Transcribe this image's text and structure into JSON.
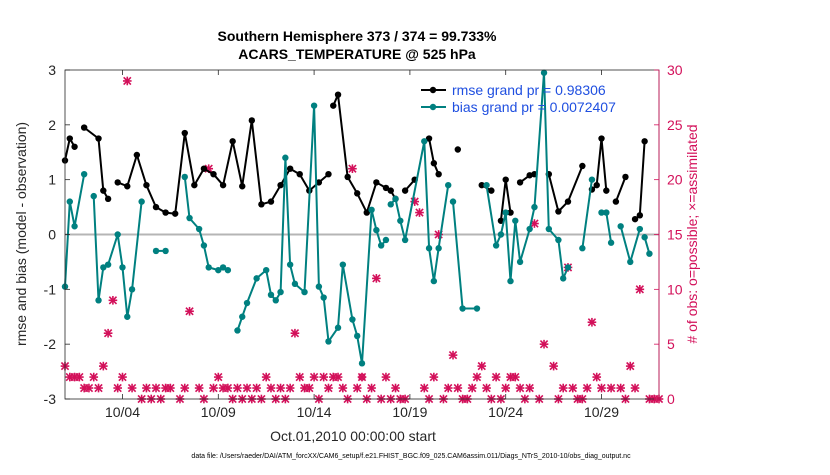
{
  "chart_data": {
    "type": "line",
    "title_line1": "Southern Hemisphere 373 / 374 = 99.733%",
    "title_line2": "ACARS_TEMPERATURE @ 525 hPa",
    "xlabel": "Oct.01,2010 00:00:00 start",
    "ylabel": "rmse and bias (model - observation)",
    "y2label": "# of obs: o=possible; ×=assimilated",
    "footer": "data file: /Users/raeder/DAI/ATM_forcXX/CAM6_setup/f.e21.FHIST_BGC.f09_025.CAM6assim.011/Diags_NTrS_2010-10/obs_diag_output.nc",
    "xlim": [
      1,
      32
    ],
    "ylim": [
      -3,
      3
    ],
    "y2lim": [
      0,
      30
    ],
    "x_ticks": [
      {
        "value": 4,
        "label": "10/04"
      },
      {
        "value": 9,
        "label": "10/09"
      },
      {
        "value": 14,
        "label": "10/14"
      },
      {
        "value": 19,
        "label": "10/19"
      },
      {
        "value": 24,
        "label": "10/24"
      },
      {
        "value": 29,
        "label": "10/29"
      }
    ],
    "y_ticks": [
      -3,
      -2,
      -1,
      0,
      1,
      2,
      3
    ],
    "y2_ticks": [
      0,
      5,
      10,
      15,
      20,
      25,
      30
    ],
    "zero_line": 0,
    "series": [
      {
        "name": "rmse",
        "legend": "rmse grand pr = 0.98306",
        "color": "#000000",
        "values": [
          [
            1.0,
            1.35
          ],
          [
            1.25,
            1.75
          ],
          [
            1.5,
            1.6
          ],
          [
            2.0,
            1.95
          ],
          [
            2.75,
            1.75
          ],
          [
            3.0,
            0.8
          ],
          [
            3.25,
            0.65
          ],
          [
            3.75,
            0.95
          ],
          [
            4.25,
            0.88
          ],
          [
            4.75,
            1.45
          ],
          [
            5.25,
            0.9
          ],
          [
            5.75,
            0.5
          ],
          [
            6.25,
            0.4
          ],
          [
            6.75,
            0.38
          ],
          [
            7.25,
            1.85
          ],
          [
            7.75,
            0.9
          ],
          [
            8.25,
            1.2
          ],
          [
            8.75,
            1.1
          ],
          [
            9.25,
            0.9
          ],
          [
            9.75,
            1.7
          ],
          [
            10.25,
            0.88
          ],
          [
            10.75,
            2.08
          ],
          [
            11.25,
            0.55
          ],
          [
            11.75,
            0.6
          ],
          [
            12.25,
            0.9
          ],
          [
            12.75,
            1.2
          ],
          [
            13.25,
            1.1
          ],
          [
            13.75,
            0.8
          ],
          [
            14.25,
            0.95
          ],
          [
            14.75,
            1.1
          ],
          [
            15.0,
            2.35
          ],
          [
            15.25,
            2.55
          ],
          [
            15.75,
            1.05
          ],
          [
            16.25,
            0.75
          ],
          [
            16.75,
            0.4
          ],
          [
            17.25,
            0.95
          ],
          [
            17.75,
            0.85
          ],
          [
            18.0,
            0.8
          ],
          [
            18.25,
            0.65
          ],
          [
            18.75,
            0.8
          ],
          [
            19.25,
            1.0
          ],
          [
            20.0,
            1.75
          ],
          [
            20.25,
            1.3
          ],
          [
            20.5,
            1.1
          ],
          [
            21.5,
            1.55
          ],
          [
            22.75,
            0.9
          ],
          [
            23.25,
            0.8
          ],
          [
            23.75,
            0.25
          ],
          [
            24.0,
            1.0
          ],
          [
            24.25,
            0.4
          ],
          [
            24.75,
            0.95
          ],
          [
            25.25,
            1.08
          ],
          [
            25.5,
            1.1
          ],
          [
            26.25,
            1.1
          ],
          [
            26.75,
            0.42
          ],
          [
            27.25,
            0.6
          ],
          [
            28.0,
            1.25
          ],
          [
            28.5,
            0.82
          ],
          [
            28.75,
            0.9
          ],
          [
            29.0,
            1.75
          ],
          [
            29.25,
            0.8
          ],
          [
            29.75,
            0.6
          ],
          [
            30.25,
            1.05
          ],
          [
            30.75,
            0.28
          ],
          [
            31.0,
            0.35
          ],
          [
            31.25,
            1.7
          ]
        ],
        "breaks_after": [
          1.5,
          2.5,
          3.25,
          14.75,
          18.25,
          19.25,
          20.5,
          21.5,
          23.25,
          24.25,
          25.5,
          28.0,
          29.25,
          30.25
        ]
      },
      {
        "name": "bias",
        "legend": "bias grand pr = 0.0072407",
        "color": "#008080",
        "values": [
          [
            1.0,
            -0.95
          ],
          [
            1.25,
            0.6
          ],
          [
            1.5,
            0.15
          ],
          [
            2.0,
            1.1
          ],
          [
            2.5,
            0.7
          ],
          [
            2.75,
            -1.2
          ],
          [
            3.0,
            -0.6
          ],
          [
            3.25,
            -0.55
          ],
          [
            3.75,
            0
          ],
          [
            4.0,
            -0.6
          ],
          [
            4.25,
            -1.5
          ],
          [
            4.5,
            -1.0
          ],
          [
            5.0,
            0.6
          ],
          [
            5.75,
            -0.3
          ],
          [
            6.25,
            -0.3
          ],
          [
            7.25,
            1.05
          ],
          [
            7.5,
            0.3
          ],
          [
            8.0,
            0.1
          ],
          [
            8.25,
            -0.2
          ],
          [
            8.5,
            -0.6
          ],
          [
            9.0,
            -0.65
          ],
          [
            9.25,
            -0.6
          ],
          [
            9.5,
            -0.65
          ],
          [
            10.0,
            -1.75
          ],
          [
            10.25,
            -1.5
          ],
          [
            10.5,
            -1.25
          ],
          [
            11.0,
            -0.8
          ],
          [
            11.5,
            -0.65
          ],
          [
            11.75,
            -1.1
          ],
          [
            12.0,
            -1.2
          ],
          [
            12.25,
            -1.05
          ],
          [
            12.5,
            1.4
          ],
          [
            12.75,
            -0.55
          ],
          [
            13.0,
            -0.9
          ],
          [
            13.5,
            -1.05
          ],
          [
            14.0,
            2.35
          ],
          [
            14.25,
            -0.95
          ],
          [
            14.5,
            -1.15
          ],
          [
            14.75,
            -1.95
          ],
          [
            15.25,
            -1.7
          ],
          [
            15.5,
            -0.55
          ],
          [
            16.0,
            -1.55
          ],
          [
            16.25,
            -1.85
          ],
          [
            16.5,
            -2.35
          ],
          [
            17.0,
            0.45
          ],
          [
            17.25,
            0.08
          ],
          [
            17.5,
            -0.2
          ],
          [
            17.75,
            -0.1
          ],
          [
            18.0,
            0.55
          ],
          [
            18.25,
            0.65
          ],
          [
            18.5,
            0.25
          ],
          [
            18.75,
            -0.1
          ],
          [
            19.75,
            1.7
          ],
          [
            20.0,
            -0.25
          ],
          [
            20.25,
            -0.85
          ],
          [
            20.5,
            -0.25
          ],
          [
            21.0,
            0.9
          ],
          [
            21.25,
            0.6
          ],
          [
            21.75,
            -1.35
          ],
          [
            22.5,
            -1.35
          ],
          [
            23.0,
            0.9
          ],
          [
            23.5,
            -0.2
          ],
          [
            23.75,
            0
          ],
          [
            24.0,
            0.4
          ],
          [
            24.25,
            -0.85
          ],
          [
            24.5,
            0.25
          ],
          [
            24.75,
            -0.5
          ],
          [
            25.25,
            0.1
          ],
          [
            25.5,
            0.5
          ],
          [
            26.0,
            2.95
          ],
          [
            26.25,
            0.1
          ],
          [
            26.75,
            -0.1
          ],
          [
            27.0,
            -0.8
          ],
          [
            27.25,
            -0.6
          ],
          [
            28.0,
            -0.25
          ],
          [
            28.5,
            1.0
          ],
          [
            29.0,
            0.4
          ],
          [
            29.25,
            0.4
          ],
          [
            29.5,
            -0.15
          ],
          [
            30.0,
            0.15
          ],
          [
            30.5,
            -0.5
          ],
          [
            31.0,
            0.1
          ],
          [
            31.25,
            -0.05
          ],
          [
            31.5,
            -0.35
          ]
        ],
        "breaks_after": [
          2.0,
          5.0,
          6.25,
          9.5,
          17.75,
          19.0,
          21.0,
          22.5,
          27.25,
          28.5,
          29.5,
          31.0
        ]
      }
    ],
    "obs_counts": {
      "axis": "right",
      "color": "#d3105a",
      "values": [
        [
          1.0,
          3
        ],
        [
          1.25,
          2
        ],
        [
          1.5,
          2
        ],
        [
          1.75,
          2
        ],
        [
          2.0,
          1
        ],
        [
          2.25,
          1
        ],
        [
          2.5,
          2
        ],
        [
          2.75,
          1
        ],
        [
          3.0,
          3
        ],
        [
          3.25,
          6
        ],
        [
          3.5,
          9
        ],
        [
          3.75,
          1
        ],
        [
          4.0,
          2
        ],
        [
          4.25,
          29
        ],
        [
          4.5,
          1
        ],
        [
          5.0,
          0
        ],
        [
          5.25,
          1
        ],
        [
          5.5,
          0
        ],
        [
          5.75,
          1
        ],
        [
          6.0,
          0
        ],
        [
          6.25,
          1
        ],
        [
          6.5,
          1
        ],
        [
          7.0,
          0
        ],
        [
          7.25,
          1
        ],
        [
          7.5,
          8
        ],
        [
          8.0,
          1
        ],
        [
          8.25,
          0
        ],
        [
          8.5,
          21
        ],
        [
          8.75,
          1
        ],
        [
          9.0,
          2
        ],
        [
          9.25,
          1
        ],
        [
          9.5,
          1
        ],
        [
          9.75,
          0
        ],
        [
          10.0,
          1
        ],
        [
          10.25,
          0
        ],
        [
          10.5,
          1
        ],
        [
          10.75,
          0
        ],
        [
          11.0,
          1
        ],
        [
          11.25,
          0
        ],
        [
          11.5,
          2
        ],
        [
          11.75,
          1
        ],
        [
          12.0,
          0
        ],
        [
          12.25,
          1
        ],
        [
          12.5,
          0
        ],
        [
          12.75,
          1
        ],
        [
          13.0,
          6
        ],
        [
          13.25,
          2
        ],
        [
          13.5,
          1
        ],
        [
          13.75,
          1
        ],
        [
          14.0,
          2
        ],
        [
          14.25,
          0
        ],
        [
          14.5,
          2
        ],
        [
          14.75,
          1
        ],
        [
          15.0,
          2
        ],
        [
          15.25,
          2
        ],
        [
          15.5,
          1
        ],
        [
          15.75,
          0
        ],
        [
          16.0,
          21
        ],
        [
          16.25,
          1
        ],
        [
          16.5,
          2
        ],
        [
          16.75,
          0
        ],
        [
          17.0,
          1
        ],
        [
          17.25,
          11
        ],
        [
          17.5,
          0
        ],
        [
          17.75,
          2
        ],
        [
          18.0,
          0
        ],
        [
          18.25,
          1
        ],
        [
          18.5,
          0
        ],
        [
          18.75,
          0
        ],
        [
          19.25,
          18
        ],
        [
          19.5,
          17
        ],
        [
          19.75,
          1
        ],
        [
          20.0,
          0
        ],
        [
          20.25,
          2
        ],
        [
          20.5,
          15
        ],
        [
          20.75,
          0
        ],
        [
          21.0,
          1
        ],
        [
          21.25,
          4
        ],
        [
          21.5,
          1
        ],
        [
          21.75,
          0
        ],
        [
          22.0,
          0
        ],
        [
          22.25,
          1
        ],
        [
          22.5,
          2
        ],
        [
          22.75,
          3
        ],
        [
          23.0,
          1
        ],
        [
          23.25,
          0
        ],
        [
          23.5,
          2
        ],
        [
          23.75,
          0
        ],
        [
          24.0,
          1
        ],
        [
          24.25,
          2
        ],
        [
          24.5,
          2
        ],
        [
          24.75,
          1
        ],
        [
          25.0,
          0
        ],
        [
          25.25,
          1
        ],
        [
          25.5,
          16
        ],
        [
          25.75,
          0
        ],
        [
          26.0,
          5
        ],
        [
          26.5,
          3
        ],
        [
          26.75,
          0
        ],
        [
          27.0,
          1
        ],
        [
          27.25,
          12
        ],
        [
          27.5,
          1
        ],
        [
          27.75,
          0
        ],
        [
          28.0,
          0
        ],
        [
          28.25,
          1
        ],
        [
          28.5,
          7
        ],
        [
          28.75,
          2
        ],
        [
          29.0,
          1
        ],
        [
          29.5,
          1
        ],
        [
          30.0,
          1
        ],
        [
          30.25,
          0
        ],
        [
          30.5,
          3
        ],
        [
          30.75,
          1
        ],
        [
          31.0,
          10
        ],
        [
          31.5,
          0
        ],
        [
          31.75,
          0
        ],
        [
          32.0,
          0
        ]
      ]
    },
    "obs_possible_marker": {
      "x": 16.5,
      "y2": 2
    }
  }
}
